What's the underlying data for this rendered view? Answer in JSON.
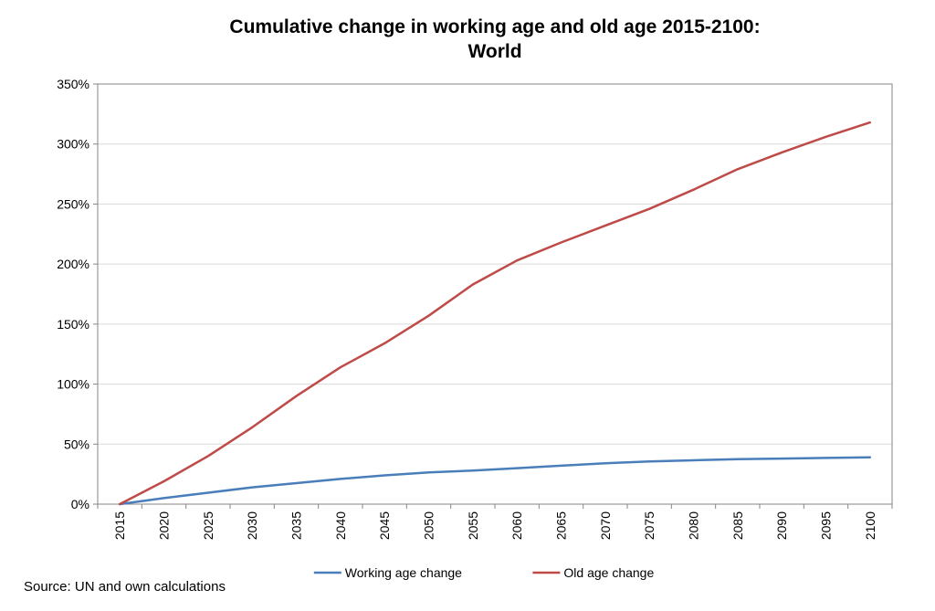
{
  "chart_data": {
    "type": "line",
    "title": "Cumulative change in working age and old age 2015-2100:",
    "subtitle": "World",
    "xlabel": "",
    "ylabel": "",
    "x": [
      "2015",
      "2020",
      "2025",
      "2030",
      "2035",
      "2040",
      "2045",
      "2050",
      "2055",
      "2060",
      "2065",
      "2070",
      "2075",
      "2080",
      "2085",
      "2090",
      "2095",
      "2100"
    ],
    "ylim": [
      0,
      350
    ],
    "yticks": [
      0,
      50,
      100,
      150,
      200,
      250,
      300,
      350
    ],
    "ytick_labels": [
      "0%",
      "50%",
      "100%",
      "150%",
      "200%",
      "250%",
      "300%",
      "350%"
    ],
    "grid": "horizontal",
    "legend_position": "bottom",
    "series": [
      {
        "name": "Working age change",
        "color": "#4a7ebb",
        "values": [
          0,
          5,
          9.5,
          14,
          17.5,
          21,
          24,
          26.5,
          28,
          30,
          32,
          34,
          35.5,
          36.5,
          37.5,
          38,
          38.5,
          39
        ]
      },
      {
        "name": "Old age change",
        "color": "#be4b48",
        "values": [
          0,
          19,
          40,
          64,
          90,
          114,
          134,
          157,
          183,
          203,
          218,
          232,
          246,
          262,
          279,
          293,
          306,
          318
        ]
      }
    ]
  },
  "source_note": "Source: UN and own calculations"
}
